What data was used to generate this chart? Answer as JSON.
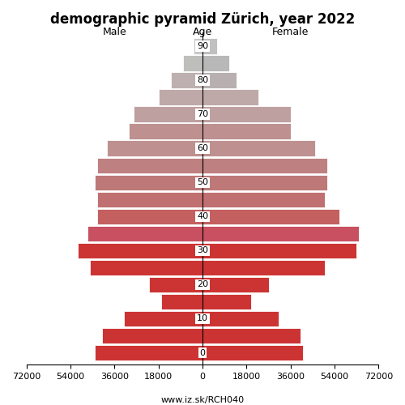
{
  "title": "demographic pyramid Zürich, year 2022",
  "xlabel_left": "Male",
  "xlabel_right": "Female",
  "xlabel_center": "Age",
  "footer": "www.iz.sk/RCH040",
  "ages": [
    0,
    5,
    10,
    15,
    20,
    25,
    30,
    35,
    40,
    45,
    50,
    55,
    60,
    65,
    70,
    75,
    80,
    85,
    90
  ],
  "male": [
    44000,
    41000,
    32000,
    17000,
    22000,
    46000,
    51000,
    47000,
    43000,
    43000,
    44000,
    43000,
    39000,
    30000,
    28000,
    18000,
    13000,
    8000,
    3500
  ],
  "female": [
    41000,
    40000,
    31000,
    20000,
    27000,
    50000,
    63000,
    64000,
    56000,
    50000,
    51000,
    51000,
    46000,
    36000,
    36000,
    23000,
    14000,
    11000,
    6000
  ],
  "male_colors": [
    "#cd3333",
    "#cc3434",
    "#cc3434",
    "#cc3434",
    "#cc3434",
    "#cc3434",
    "#cc3434",
    "#c85060",
    "#c46060",
    "#c07070",
    "#be7878",
    "#be8080",
    "#be9090",
    "#be9090",
    "#bea0a0",
    "#bea8a8",
    "#beb0b0",
    "#bebebd",
    "#c8c8c8"
  ],
  "female_colors": [
    "#cc3333",
    "#cc3434",
    "#cc3434",
    "#cc3434",
    "#cc3434",
    "#cc3434",
    "#cc3434",
    "#c85060",
    "#c46060",
    "#c07070",
    "#be7878",
    "#be8080",
    "#be9090",
    "#be9090",
    "#bea0a0",
    "#bea8a8",
    "#b8b0b0",
    "#b8b8b8",
    "#c0c0c0"
  ],
  "xlim": 72000,
  "xtick_positions": [
    -72000,
    -54000,
    -36000,
    -18000,
    0,
    18000,
    36000,
    54000,
    72000
  ],
  "xtick_labels": [
    "72000",
    "54000",
    "36000",
    "18000",
    "0",
    "18000",
    "36000",
    "54000",
    "72000"
  ],
  "ytick_positions": [
    0,
    10,
    20,
    30,
    40,
    50,
    60,
    70,
    80,
    90
  ],
  "bar_height": 4.6,
  "background_color": "#ffffff",
  "title_fontsize": 12,
  "label_fontsize": 9,
  "tick_fontsize": 8,
  "footer_fontsize": 8
}
